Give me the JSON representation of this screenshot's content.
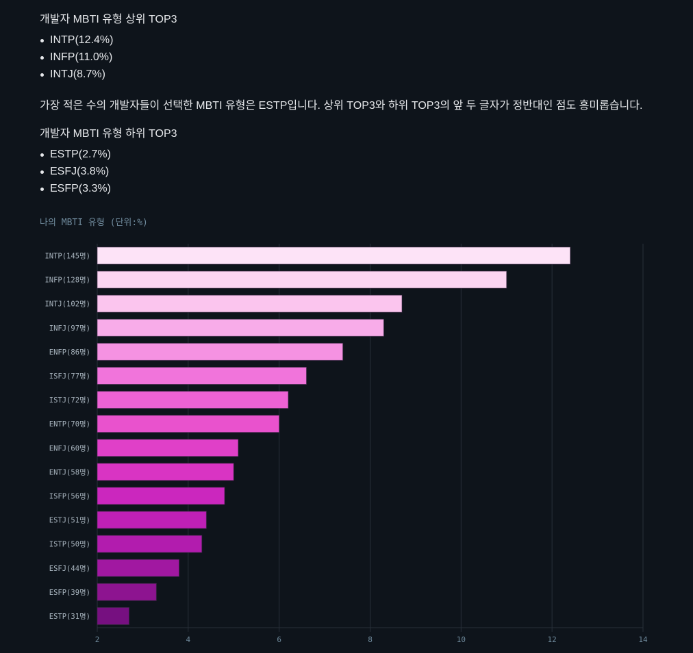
{
  "sections": {
    "top_heading": "개발자 MBTI 유형 상위 TOP3",
    "top_list": [
      "INTP(12.4%)",
      "INFP(11.0%)",
      "INTJ(8.7%)"
    ],
    "paragraph": "가장 적은 수의 개발자들이 선택한 MBTI 유형은 ESTP입니다. 상위 TOP3와 하위 TOP3의 앞 두 글자가 정반대인 점도 흥미롭습니다.",
    "bottom_heading": "개발자 MBTI 유형 하위 TOP3",
    "bottom_list": [
      "ESTP(2.7%)",
      "ESFJ(3.8%)",
      "ESFP(3.3%)"
    ]
  },
  "chart_data": {
    "type": "bar",
    "orientation": "horizontal",
    "title": "나의 MBTI 유형 (단위:%)",
    "xlabel": "",
    "ylabel": "",
    "xlim": [
      2,
      14
    ],
    "xticks": [
      2,
      4,
      6,
      8,
      10,
      12,
      14
    ],
    "grid": true,
    "categories": [
      "INTP(145명)",
      "INFP(128명)",
      "INTJ(102명)",
      "INFJ(97명)",
      "ENFP(86명)",
      "ISFJ(77명)",
      "ISTJ(72명)",
      "ENTP(70명)",
      "ENFJ(60명)",
      "ENTJ(58명)",
      "ISFP(56명)",
      "ESTJ(51명)",
      "ISTP(50명)",
      "ESFJ(44명)",
      "ESFP(39명)",
      "ESTP(31명)"
    ],
    "values": [
      12.4,
      11.0,
      8.7,
      8.3,
      7.4,
      6.6,
      6.2,
      6.0,
      5.1,
      5.0,
      4.8,
      4.4,
      4.3,
      3.8,
      3.3,
      2.7
    ],
    "colors": [
      "#fde3f7",
      "#fcd5f2",
      "#fbc5ee",
      "#f8ace9",
      "#f592e2",
      "#f174db",
      "#ed62d4",
      "#e952cd",
      "#e040c8",
      "#d934c3",
      "#cb27be",
      "#bf20b6",
      "#b21cae",
      "#a118a1",
      "#8d1490",
      "#761080"
    ]
  }
}
